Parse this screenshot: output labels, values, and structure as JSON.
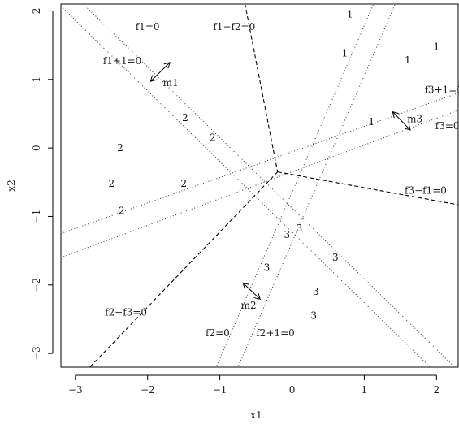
{
  "chart_data": {
    "type": "scatter",
    "xlabel": "x1",
    "ylabel": "x2",
    "xlim": [
      -3.2,
      2.3
    ],
    "ylim": [
      -3.2,
      2.1
    ],
    "xticks": [
      -3,
      -2,
      -1,
      0,
      1,
      2
    ],
    "yticks": [
      -3,
      -2,
      -1,
      0,
      1,
      2
    ],
    "grid": false,
    "points": [
      {
        "label": "1",
        "x": 0.8,
        "y": 1.95
      },
      {
        "label": "1",
        "x": 0.73,
        "y": 1.38
      },
      {
        "label": "1",
        "x": 1.6,
        "y": 1.28
      },
      {
        "label": "1",
        "x": 2.0,
        "y": 1.48
      },
      {
        "label": "1",
        "x": 1.1,
        "y": 0.38
      },
      {
        "label": "2",
        "x": -1.48,
        "y": 0.44
      },
      {
        "label": "2",
        "x": -1.1,
        "y": 0.15
      },
      {
        "label": "2",
        "x": -2.38,
        "y": 0.0
      },
      {
        "label": "2",
        "x": -2.5,
        "y": -0.52
      },
      {
        "label": "2",
        "x": -1.5,
        "y": -0.52
      },
      {
        "label": "2",
        "x": -2.36,
        "y": -0.92
      },
      {
        "label": "3",
        "x": 0.1,
        "y": -1.17
      },
      {
        "label": "3",
        "x": -0.07,
        "y": -1.27
      },
      {
        "label": "3",
        "x": 0.6,
        "y": -1.6
      },
      {
        "label": "3",
        "x": -0.35,
        "y": -1.75
      },
      {
        "label": "3",
        "x": 0.33,
        "y": -2.1
      },
      {
        "label": "3",
        "x": 0.3,
        "y": -2.45
      }
    ],
    "dashed_lines": [
      {
        "label": "f1−f2=0",
        "from": [
          -0.67,
          2.2
        ],
        "to": [
          -0.2,
          -0.35
        ]
      },
      {
        "label": "f2−f3=0",
        "from": [
          -0.2,
          -0.35
        ],
        "to": [
          -2.8,
          -3.2
        ]
      },
      {
        "label": "f3−f1=0",
        "from": [
          -0.2,
          -0.35
        ],
        "to": [
          2.3,
          -0.83
        ]
      }
    ],
    "dotted_lines": [
      {
        "from": [
          -3.2,
          2.42
        ],
        "to": [
          2.3,
          -3.25
        ]
      },
      {
        "from": [
          -3.2,
          2.07
        ],
        "to": [
          2.3,
          -3.6
        ]
      },
      {
        "from": [
          1.17,
          2.2
        ],
        "to": [
          -1.05,
          -3.2
        ]
      },
      {
        "from": [
          1.47,
          2.2
        ],
        "to": [
          -0.75,
          -3.2
        ]
      },
      {
        "from": [
          -3.2,
          -1.25
        ],
        "to": [
          2.3,
          0.8
        ]
      },
      {
        "from": [
          -3.2,
          -1.6
        ],
        "to": [
          2.3,
          0.55
        ]
      }
    ],
    "annotations": [
      {
        "text": "f1=0",
        "x": -2.0,
        "y": 1.77
      },
      {
        "text": "f1−f2=0",
        "x": -0.8,
        "y": 1.77
      },
      {
        "text": "f1+1=0",
        "x": -2.35,
        "y": 1.27
      },
      {
        "text": "m1",
        "x": -1.68,
        "y": 0.95
      },
      {
        "text": "f3+1=0",
        "x": 2.1,
        "y": 0.85
      },
      {
        "text": "m3",
        "x": 1.7,
        "y": 0.42
      },
      {
        "text": "f3=0",
        "x": 2.15,
        "y": 0.32
      },
      {
        "text": "f3−f1=0",
        "x": 1.85,
        "y": -0.62
      },
      {
        "text": "f2−f3=0",
        "x": -2.3,
        "y": -2.4
      },
      {
        "text": "m2",
        "x": -0.6,
        "y": -2.3
      },
      {
        "text": "f2=0",
        "x": -1.03,
        "y": -2.7
      },
      {
        "text": "f2+1=0",
        "x": -0.23,
        "y": -2.7
      }
    ],
    "margin_arrows": [
      {
        "name": "m1-arrow",
        "from": [
          -1.95,
          0.98
        ],
        "to": [
          -1.7,
          1.24
        ]
      },
      {
        "name": "m2-arrow",
        "from": [
          -0.67,
          -1.98
        ],
        "to": [
          -0.45,
          -2.2
        ]
      },
      {
        "name": "m3-arrow",
        "from": [
          1.4,
          0.52
        ],
        "to": [
          1.63,
          0.27
        ]
      }
    ]
  }
}
